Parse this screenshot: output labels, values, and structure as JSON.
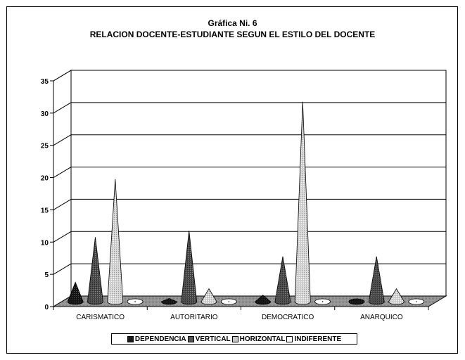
{
  "chart_data": {
    "type": "bar",
    "title": "Gráfica Ni. 6",
    "subtitle": "RELACION DOCENTE-ESTUDIANTE SEGUN EL ESTILO DEL DOCENTE",
    "xlabel": "",
    "ylabel": "",
    "categories": [
      "CARISMATICO",
      "AUTORITARIO",
      "DEMOCRATICO",
      "ANARQUICO"
    ],
    "series": [
      {
        "name": "DEPENDENCIA",
        "values": [
          3,
          0.5,
          1,
          0
        ],
        "color": "#1a1a1a"
      },
      {
        "name": "VERTICAL",
        "values": [
          10,
          11,
          7,
          7
        ],
        "color": "#555555"
      },
      {
        "name": "HORIZONTAL",
        "values": [
          19,
          2,
          31,
          2
        ],
        "color": "#c8c8c8"
      },
      {
        "name": "INDIFERENTE",
        "values": [
          0,
          0,
          0,
          0
        ],
        "color": "#ffffff"
      }
    ],
    "ylim": [
      0,
      35
    ],
    "yticks": [
      "0",
      "5",
      "10",
      "15",
      "20",
      "25",
      "30",
      "35"
    ],
    "grid": true,
    "legend_position": "bottom",
    "style": "3d-cone"
  }
}
